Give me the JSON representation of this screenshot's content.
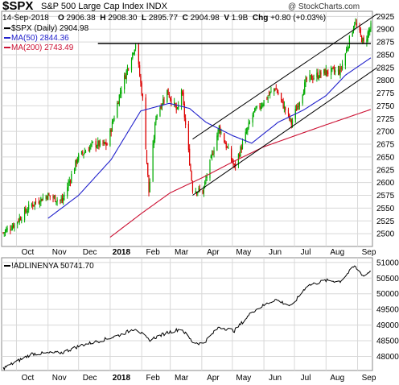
{
  "header": {
    "symbol": "$SPX",
    "description": "S&P 500 Large Cap Index INDX",
    "watermark": "@ StockCharts.com",
    "date": "14-Sep-2018",
    "open_label": "O",
    "open": "2906.38",
    "high_label": "H",
    "high": "2908.30",
    "low_label": "L",
    "low": "2895.77",
    "close_label": "C",
    "close": "2904.98",
    "volume_label": "V",
    "volume": "1.9B",
    "change_label": "Chg",
    "change": "+0.80 (+0.03%)"
  },
  "legend": {
    "price": "$SPX (Daily) 2904.98",
    "ma50": "MA(50) 2844.36",
    "ma200": "MA(200) 2743.49",
    "breadth": "!ADLINENYA 50741.70"
  },
  "colors": {
    "up": "#00aa00",
    "down": "#dd0000",
    "ma50": "#2222cc",
    "ma200": "#cc1133",
    "grid": "#d8d8d8",
    "trendline": "#000000"
  },
  "chart_data": [
    {
      "type": "candlestick",
      "x_range": [
        "2017-09-18",
        "2018-09-14"
      ],
      "ylim": [
        2475,
        2935
      ],
      "y_ticks": [
        2500,
        2525,
        2550,
        2575,
        2600,
        2625,
        2650,
        2675,
        2700,
        2725,
        2750,
        2775,
        2800,
        2825,
        2850,
        2875,
        2900,
        2925
      ],
      "x_tick_labels": [
        "Oct",
        "Nov",
        "Dec",
        "2018",
        "Feb",
        "Mar",
        "Apr",
        "May",
        "Jun",
        "Jul",
        "Aug",
        "Sep"
      ],
      "grid": true,
      "price_closes_approx": [
        [
          "2017-09-18",
          2502
        ],
        [
          "2017-09-29",
          2519
        ],
        [
          "2017-10-16",
          2557
        ],
        [
          "2017-10-31",
          2575
        ],
        [
          "2017-11-15",
          2564
        ],
        [
          "2017-11-30",
          2648
        ],
        [
          "2017-12-15",
          2675
        ],
        [
          "2017-12-29",
          2674
        ],
        [
          "2018-01-12",
          2786
        ],
        [
          "2018-01-26",
          2872
        ],
        [
          "2018-02-02",
          2762
        ],
        [
          "2018-02-08",
          2581
        ],
        [
          "2018-02-15",
          2731
        ],
        [
          "2018-02-26",
          2779
        ],
        [
          "2018-03-08",
          2738
        ],
        [
          "2018-03-12",
          2783
        ],
        [
          "2018-03-23",
          2588
        ],
        [
          "2018-04-02",
          2582
        ],
        [
          "2018-04-18",
          2708
        ],
        [
          "2018-05-03",
          2630
        ],
        [
          "2018-05-21",
          2733
        ],
        [
          "2018-06-12",
          2786
        ],
        [
          "2018-06-28",
          2716
        ],
        [
          "2018-07-13",
          2801
        ],
        [
          "2018-07-31",
          2816
        ],
        [
          "2018-08-15",
          2818
        ],
        [
          "2018-08-29",
          2914
        ],
        [
          "2018-09-07",
          2872
        ],
        [
          "2018-09-14",
          2905
        ]
      ],
      "series": [
        {
          "name": "MA(50)",
          "values": [
            [
              "2017-11-01",
              2530
            ],
            [
              "2017-12-01",
              2575
            ],
            [
              "2018-01-02",
              2645
            ],
            [
              "2018-01-31",
              2740
            ],
            [
              "2018-02-28",
              2755
            ],
            [
              "2018-03-20",
              2745
            ],
            [
              "2018-04-05",
              2718
            ],
            [
              "2018-05-01",
              2692
            ],
            [
              "2018-05-20",
              2677
            ],
            [
              "2018-06-15",
              2718
            ],
            [
              "2018-07-10",
              2742
            ],
            [
              "2018-08-01",
              2770
            ],
            [
              "2018-08-20",
              2810
            ],
            [
              "2018-09-14",
              2844
            ]
          ]
        },
        {
          "name": "MA(200)",
          "values": [
            [
              "2018-01-01",
              2493
            ],
            [
              "2018-02-01",
              2540
            ],
            [
              "2018-03-01",
              2580
            ],
            [
              "2018-04-02",
              2610
            ],
            [
              "2018-05-01",
              2640
            ],
            [
              "2018-06-01",
              2670
            ],
            [
              "2018-07-02",
              2692
            ],
            [
              "2018-08-01",
              2713
            ],
            [
              "2018-09-14",
              2743
            ]
          ]
        }
      ],
      "annotations": {
        "resistance_level": 2872,
        "channel": {
          "start_date": "2018-03-23",
          "end_date": "2018-09-14",
          "upper": [
            2685,
            2930
          ],
          "lower": [
            2575,
            2825
          ]
        }
      }
    },
    {
      "type": "line",
      "name": "!ADLINENYA",
      "x_range": [
        "2017-09-18",
        "2018-09-14"
      ],
      "ylim": [
        47550,
        51150
      ],
      "y_ticks": [
        48000,
        48500,
        49000,
        49500,
        50000,
        50500,
        51000
      ],
      "x_tick_labels": [
        "Oct",
        "Nov",
        "Dec",
        "2018",
        "Feb",
        "Mar",
        "Apr",
        "May",
        "Jun",
        "Jul",
        "Aug",
        "Sep"
      ],
      "grid": true,
      "values": [
        [
          "2017-09-18",
          47620
        ],
        [
          "2017-10-16",
          48080
        ],
        [
          "2017-11-15",
          48120
        ],
        [
          "2017-12-04",
          48360
        ],
        [
          "2017-12-20",
          48480
        ],
        [
          "2018-01-12",
          48700
        ],
        [
          "2018-01-26",
          48900
        ],
        [
          "2018-02-08",
          48520
        ],
        [
          "2018-02-26",
          48760
        ],
        [
          "2018-03-12",
          48880
        ],
        [
          "2018-03-23",
          48460
        ],
        [
          "2018-04-02",
          48400
        ],
        [
          "2018-04-18",
          48940
        ],
        [
          "2018-05-03",
          48820
        ],
        [
          "2018-05-21",
          49440
        ],
        [
          "2018-06-12",
          49820
        ],
        [
          "2018-06-28",
          49600
        ],
        [
          "2018-07-13",
          50250
        ],
        [
          "2018-07-31",
          50420
        ],
        [
          "2018-08-15",
          50400
        ],
        [
          "2018-08-29",
          50880
        ],
        [
          "2018-09-07",
          50560
        ],
        [
          "2018-09-14",
          50742
        ]
      ]
    }
  ]
}
